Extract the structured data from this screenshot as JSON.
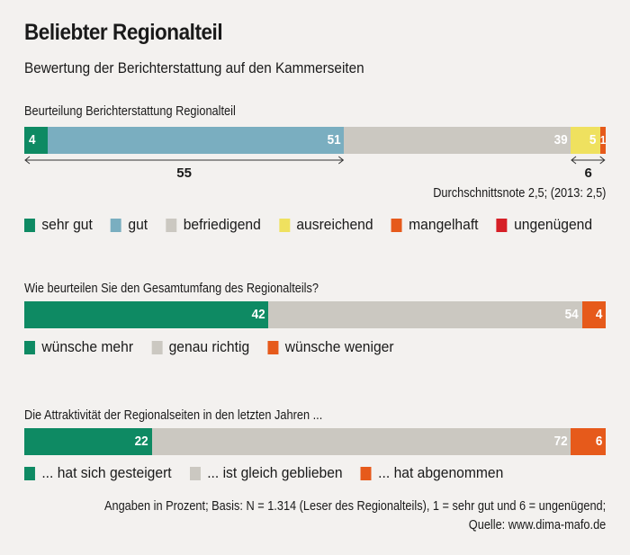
{
  "chart_data": [
    {
      "type": "bar",
      "orientation": "horizontal-stacked-100",
      "title": "Beliebter Regionalteil",
      "subtitle": "Bewertung der Berichterstattung auf den Kammerseiten",
      "question": "Beurteilung Berichterstattung Regionalteil",
      "unit": "%",
      "series": [
        {
          "name": "sehr gut",
          "value": 4,
          "color": "#0e8a63",
          "label": "4"
        },
        {
          "name": "gut",
          "value": 51,
          "color": "#7aaec0",
          "label": "51"
        },
        {
          "name": "befriedigend",
          "value": 39,
          "color": "#cbc8c1",
          "label": "39"
        },
        {
          "name": "ausreichend",
          "value": 5,
          "color": "#efe15f",
          "label": "5"
        },
        {
          "name": "mangelhaft",
          "value": 1,
          "color": "#e65a1b",
          "label": "1"
        },
        {
          "name": "ungenügend",
          "value": 0,
          "color": "#d61f26",
          "label": ""
        }
      ],
      "annotations": [
        {
          "text": "55",
          "spans": [
            "sehr gut",
            "gut"
          ]
        },
        {
          "text": "6",
          "spans": [
            "ausreichend",
            "mangelhaft"
          ]
        }
      ],
      "average_note": "Durchschnittsnote 2,5; (2013: 2,5)",
      "legend_placement": "bottom"
    },
    {
      "type": "bar",
      "orientation": "horizontal-stacked-100",
      "question": "Wie beurteilen Sie den Gesamtumfang des Regionalteils?",
      "unit": "%",
      "series": [
        {
          "name": "wünsche mehr",
          "value": 42,
          "color": "#0e8a63",
          "label": "42"
        },
        {
          "name": "genau richtig",
          "value": 54,
          "color": "#cbc8c1",
          "label": "54"
        },
        {
          "name": "wünsche weniger",
          "value": 4,
          "color": "#e65a1b",
          "label": "4"
        }
      ],
      "legend_placement": "bottom"
    },
    {
      "type": "bar",
      "orientation": "horizontal-stacked-100",
      "question": "Die Attraktivität der Regionalseiten in den letzten Jahren ...",
      "unit": "%",
      "series": [
        {
          "name": "... hat sich gesteigert",
          "value": 22,
          "color": "#0e8a63",
          "label": "22"
        },
        {
          "name": "... ist gleich geblieben",
          "value": 72,
          "color": "#cbc8c1",
          "label": "72"
        },
        {
          "name": "... hat abgenommen",
          "value": 6,
          "color": "#e65a1b",
          "label": "6"
        }
      ],
      "legend_placement": "bottom"
    }
  ],
  "footer": {
    "line1": "Angaben in Prozent; Basis: N = 1.314 (Leser des Regionalteils), 1 = sehr gut und 6 = ungenügend;",
    "line2": "Quelle: www.dima-mafo.de"
  }
}
